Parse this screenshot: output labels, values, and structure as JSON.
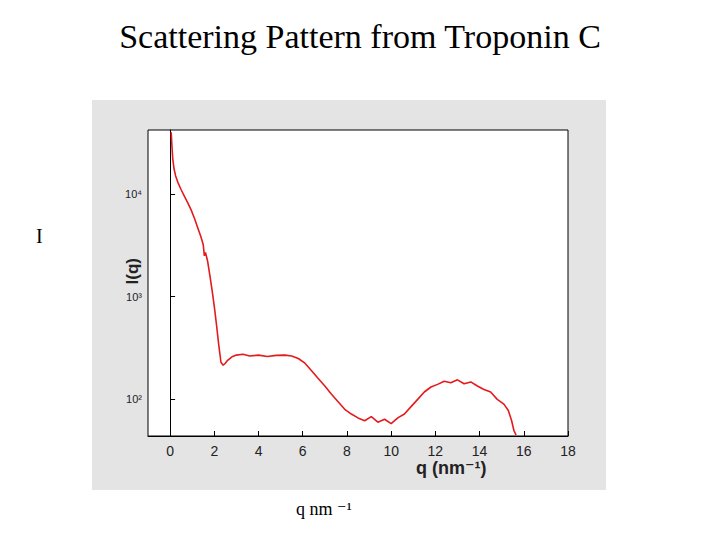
{
  "chart_data": {
    "type": "line",
    "title": "Scattering Pattern from Troponin C",
    "y_label": "I(q)",
    "x_label": "q (nm⁻¹)",
    "slide_y_label": "I",
    "slide_x_label": "q nm ⁻¹",
    "color": "#e41a1c",
    "log": "y",
    "grid": false,
    "xlim": [
      -1,
      18
    ],
    "xticks": [
      0,
      2,
      4,
      6,
      8,
      10,
      12,
      14,
      16,
      18
    ],
    "ylim": [
      44,
      42000
    ],
    "yticks": [
      {
        "value": 100,
        "label": "10²"
      },
      {
        "value": 1000,
        "label": "10³"
      },
      {
        "value": 10000,
        "label": "10⁴"
      }
    ],
    "x": [
      0.05,
      0.08,
      0.12,
      0.18,
      0.25,
      0.35,
      0.5,
      0.65,
      0.8,
      0.95,
      1.1,
      1.25,
      1.4,
      1.5,
      1.55,
      1.6,
      1.7,
      1.8,
      1.9,
      2.0,
      2.1,
      2.2,
      2.3,
      2.4,
      2.5,
      2.6,
      2.8,
      3.0,
      3.3,
      3.6,
      4.0,
      4.4,
      4.8,
      5.2,
      5.5,
      5.8,
      6.1,
      6.4,
      6.7,
      7.0,
      7.3,
      7.6,
      7.9,
      8.2,
      8.5,
      8.8,
      9.1,
      9.4,
      9.7,
      10.0,
      10.3,
      10.6,
      10.9,
      11.2,
      11.5,
      11.8,
      12.1,
      12.4,
      12.7,
      13.0,
      13.3,
      13.6,
      13.9,
      14.2,
      14.5,
      14.8,
      15.1,
      15.3,
      15.45,
      15.55,
      15.65
    ],
    "values": [
      40000,
      30000,
      22000,
      17500,
      15000,
      13000,
      11000,
      9500,
      8200,
      7000,
      5800,
      4700,
      3800,
      3200,
      2500,
      2700,
      2200,
      1600,
      1150,
      800,
      530,
      340,
      230,
      215,
      225,
      240,
      260,
      270,
      275,
      265,
      270,
      262,
      268,
      270,
      265,
      250,
      225,
      190,
      160,
      135,
      112,
      95,
      80,
      72,
      66,
      62,
      68,
      60,
      64,
      58,
      66,
      72,
      85,
      100,
      118,
      132,
      140,
      150,
      145,
      155,
      142,
      148,
      135,
      125,
      118,
      100,
      90,
      78,
      62,
      50,
      45
    ]
  }
}
